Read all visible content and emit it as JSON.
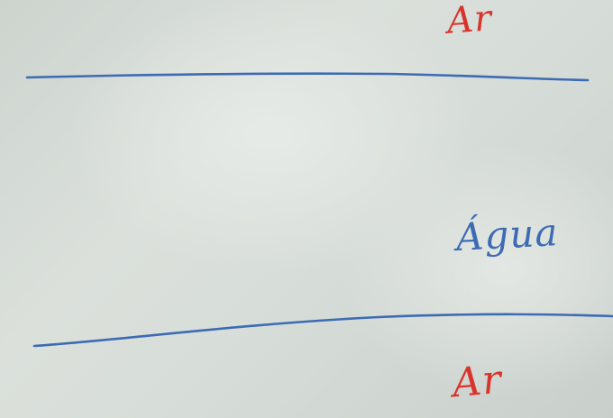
{
  "scene": {
    "surface": "whiteboard",
    "colors": {
      "line": "#3d6bb3",
      "label_red": "#d8342c",
      "label_blue": "#3d6bb3"
    },
    "labels": {
      "top": "Ar",
      "middle": "Água",
      "bottom": "Ar"
    }
  }
}
